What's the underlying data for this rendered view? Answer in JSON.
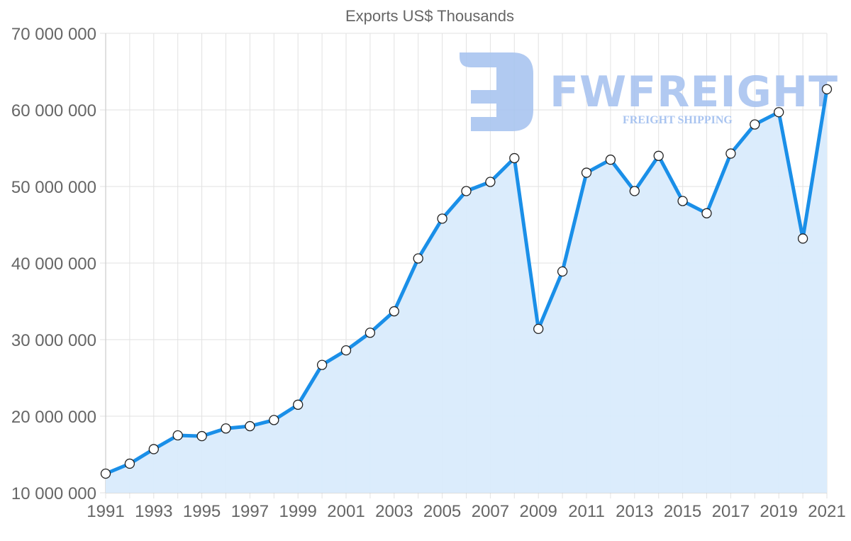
{
  "chart_data": {
    "type": "line",
    "title": "Exports US$ Thousands",
    "xlabel": "",
    "ylabel": "",
    "ylim": [
      10000000,
      70000000
    ],
    "y_ticks": [
      10000000,
      20000000,
      30000000,
      40000000,
      50000000,
      60000000,
      70000000
    ],
    "y_tick_labels": [
      "10 000 000",
      "20 000 000",
      "30 000 000",
      "40 000 000",
      "50 000 000",
      "60 000 000",
      "70 000 000"
    ],
    "x": [
      1991,
      1992,
      1993,
      1994,
      1995,
      1996,
      1997,
      1998,
      1999,
      2000,
      2001,
      2002,
      2003,
      2004,
      2005,
      2006,
      2007,
      2008,
      2009,
      2010,
      2011,
      2012,
      2013,
      2014,
      2015,
      2016,
      2017,
      2018,
      2019,
      2020,
      2021
    ],
    "x_tick_labels": [
      "1991",
      "1993",
      "1995",
      "1997",
      "1999",
      "2001",
      "2003",
      "2005",
      "2007",
      "2009",
      "2011",
      "2013",
      "2015",
      "2017",
      "2019",
      "2021"
    ],
    "series": [
      {
        "name": "Exports US$ Thousands",
        "color": "#1a8fe8",
        "fill": "#d9ebfc",
        "values": [
          12500000,
          13800000,
          15700000,
          17500000,
          17400000,
          18400000,
          18700000,
          19500000,
          21500000,
          26700000,
          28600000,
          30900000,
          33700000,
          40600000,
          45800000,
          49400000,
          50600000,
          53700000,
          31400000,
          38900000,
          51800000,
          53500000,
          49400000,
          54000000,
          48100000,
          46500000,
          54300000,
          58100000,
          59700000,
          43200000,
          62700000
        ]
      }
    ],
    "grid": true,
    "legend": "none",
    "area_fill": true
  },
  "watermark": {
    "brand": "FWFREIGHT",
    "tagline": "FREIGHT SHIPPING",
    "color": "#a9c4f0"
  }
}
